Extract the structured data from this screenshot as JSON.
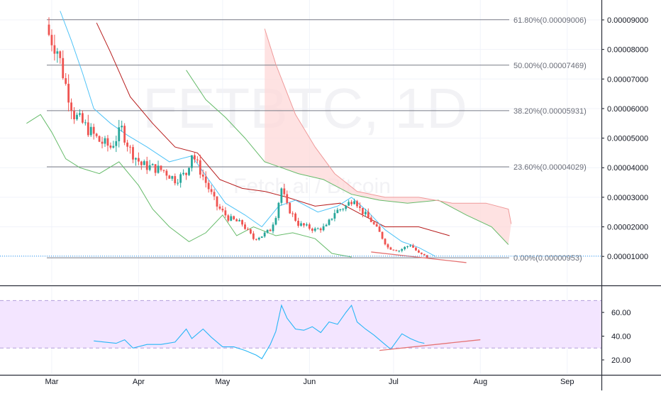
{
  "watermark": {
    "symbol": "FETBTC, 1D",
    "sub": "Fetch.ai / Bitcoin"
  },
  "colors": {
    "up": "#26a69a",
    "down": "#ef5350",
    "fib_line": "#787b86",
    "baseline": "#2196f3",
    "fast_ma": "#4fc3f7",
    "slow_ma": "#b71c1c",
    "span_a": "#66bb6a",
    "span_b": "#ef9a9a",
    "cloud": "#fdd8d8",
    "trend": "#e57373",
    "rsi": "#29b6f6",
    "rsi_band": "#f3e5ff"
  },
  "chart_data": [
    {
      "type": "candlestick",
      "title": "",
      "xlabel": "",
      "ylabel": "",
      "x_ticks": [
        "Mar",
        "Apr",
        "May",
        "Jun",
        "Jul",
        "Aug",
        "Sep"
      ],
      "y_ticks": [
        "0.00009000",
        "0.00008000",
        "0.00007000",
        "0.00006000",
        "0.00005000",
        "0.00004000",
        "0.00003000",
        "0.00002000",
        "0.00001000"
      ],
      "ylim": [
        6.2e-06,
        9e-05
      ],
      "fib_levels": [
        {
          "label": "61.80%(0.00009006)",
          "value": 9.006e-05
        },
        {
          "label": "50.00%(0.00007469)",
          "value": 7.469e-05
        },
        {
          "label": "38.20%(0.00005931)",
          "value": 5.931e-05
        },
        {
          "label": "23.60%(0.00004029)",
          "value": 4.029e-05
        },
        {
          "label": "0.00%(0.00000953)",
          "value": 9.53e-06
        }
      ],
      "current_price": 1.01e-05,
      "close_path": [
        [
          "2019-02-28",
          8.5e-05
        ],
        [
          "2019-03-03",
          8e-05
        ],
        [
          "2019-03-06",
          6.8e-05
        ],
        [
          "2019-03-09",
          5.8e-05
        ],
        [
          "2019-03-12",
          5.5e-05
        ],
        [
          "2019-03-15",
          5.2e-05
        ],
        [
          "2019-03-18",
          4.9e-05
        ],
        [
          "2019-03-22",
          4.7e-05
        ],
        [
          "2019-03-26",
          5.3e-05
        ],
        [
          "2019-03-29",
          4.6e-05
        ],
        [
          "2019-04-02",
          4.1e-05
        ],
        [
          "2019-04-06",
          4e-05
        ],
        [
          "2019-04-10",
          3.9e-05
        ],
        [
          "2019-04-14",
          3.6e-05
        ],
        [
          "2019-04-18",
          3.8e-05
        ],
        [
          "2019-04-20",
          4.5e-05
        ],
        [
          "2019-04-22",
          4.1e-05
        ],
        [
          "2019-04-25",
          3.5e-05
        ],
        [
          "2019-04-29",
          2.7e-05
        ],
        [
          "2019-05-03",
          2.3e-05
        ],
        [
          "2019-05-08",
          2.1e-05
        ],
        [
          "2019-05-12",
          1.6e-05
        ],
        [
          "2019-05-15",
          1.7e-05
        ],
        [
          "2019-05-18",
          1.9e-05
        ],
        [
          "2019-05-20",
          2.4e-05
        ],
        [
          "2019-05-22",
          3.3e-05
        ],
        [
          "2019-05-24",
          2.7e-05
        ],
        [
          "2019-05-28",
          2.1e-05
        ],
        [
          "2019-06-03",
          1.9e-05
        ],
        [
          "2019-06-07",
          2e-05
        ],
        [
          "2019-06-10",
          2.5e-05
        ],
        [
          "2019-06-14",
          2.7e-05
        ],
        [
          "2019-06-17",
          3e-05
        ],
        [
          "2019-06-19",
          2.6e-05
        ],
        [
          "2019-06-23",
          2.2e-05
        ],
        [
          "2019-06-26",
          1.8e-05
        ],
        [
          "2019-06-29",
          1.3e-05
        ],
        [
          "2019-07-03",
          1.2e-05
        ],
        [
          "2019-07-07",
          1.4e-05
        ],
        [
          "2019-07-10",
          1.1e-05
        ],
        [
          "2019-07-13",
          9.8e-06
        ]
      ],
      "fast_ma": [
        [
          "2019-03-04",
          9.3e-05
        ],
        [
          "2019-03-08",
          8.3e-05
        ],
        [
          "2019-03-12",
          7.2e-05
        ],
        [
          "2019-03-16",
          6e-05
        ],
        [
          "2019-03-22",
          5.5e-05
        ],
        [
          "2019-03-28",
          5.1e-05
        ],
        [
          "2019-04-04",
          4.7e-05
        ],
        [
          "2019-04-12",
          4.2e-05
        ],
        [
          "2019-04-20",
          4.4e-05
        ],
        [
          "2019-04-26",
          3.6e-05
        ],
        [
          "2019-05-02",
          2.8e-05
        ],
        [
          "2019-05-09",
          2.4e-05
        ],
        [
          "2019-05-15",
          2e-05
        ],
        [
          "2019-05-21",
          2.7e-05
        ],
        [
          "2019-05-27",
          2.9e-05
        ],
        [
          "2019-06-04",
          2.5e-05
        ],
        [
          "2019-06-11",
          2.7e-05
        ],
        [
          "2019-06-16",
          3e-05
        ],
        [
          "2019-06-22",
          2.5e-05
        ],
        [
          "2019-06-28",
          1.9e-05
        ],
        [
          "2019-07-04",
          1.5e-05
        ],
        [
          "2019-07-10",
          1.3e-05
        ],
        [
          "2019-07-16",
          1e-05
        ]
      ],
      "slow_ma": [
        [
          "2019-03-17",
          8.9e-05
        ],
        [
          "2019-03-22",
          7.9e-05
        ],
        [
          "2019-03-29",
          6.4e-05
        ],
        [
          "2019-04-06",
          5.5e-05
        ],
        [
          "2019-04-14",
          4.7e-05
        ],
        [
          "2019-04-22",
          4.5e-05
        ],
        [
          "2019-04-30",
          3.6e-05
        ],
        [
          "2019-05-08",
          3.3e-05
        ],
        [
          "2019-05-16",
          3.2e-05
        ],
        [
          "2019-05-24",
          3e-05
        ],
        [
          "2019-06-03",
          2.7e-05
        ],
        [
          "2019-06-12",
          2.8e-05
        ],
        [
          "2019-06-20",
          2.4e-05
        ],
        [
          "2019-06-28",
          2e-05
        ],
        [
          "2019-07-10",
          2e-05
        ],
        [
          "2019-07-21",
          1.7e-05
        ]
      ],
      "lagging_span": [
        [
          "2019-02-20",
          5.5e-05
        ],
        [
          "2019-02-25",
          5.8e-05
        ],
        [
          "2019-03-01",
          5.2e-05
        ],
        [
          "2019-03-06",
          4.3e-05
        ],
        [
          "2019-03-11",
          4e-05
        ],
        [
          "2019-03-18",
          3.8e-05
        ],
        [
          "2019-03-25",
          4.2e-05
        ],
        [
          "2019-04-01",
          3.4e-05
        ],
        [
          "2019-04-06",
          2.6e-05
        ],
        [
          "2019-04-12",
          2e-05
        ],
        [
          "2019-04-19",
          1.5e-05
        ],
        [
          "2019-04-25",
          1.8e-05
        ],
        [
          "2019-05-01",
          2.4e-05
        ],
        [
          "2019-05-06",
          1.7e-05
        ],
        [
          "2019-05-12",
          2e-05
        ],
        [
          "2019-05-20",
          1.7e-05
        ],
        [
          "2019-05-26",
          1.8e-05
        ],
        [
          "2019-06-03",
          1.6e-05
        ],
        [
          "2019-06-09",
          1.1e-05
        ],
        [
          "2019-06-16",
          9.8e-06
        ]
      ],
      "span_a": [
        [
          "2019-04-18",
          7.3e-05
        ],
        [
          "2019-04-25",
          6.3e-05
        ],
        [
          "2019-05-02",
          5.7e-05
        ],
        [
          "2019-05-09",
          5e-05
        ],
        [
          "2019-05-16",
          4.2e-05
        ],
        [
          "2019-05-22",
          4e-05
        ],
        [
          "2019-05-28",
          3.8e-05
        ],
        [
          "2019-06-06",
          3.6e-05
        ],
        [
          "2019-06-16",
          3.1e-05
        ],
        [
          "2019-06-26",
          2.9e-05
        ],
        [
          "2019-07-06",
          2.8e-05
        ],
        [
          "2019-07-17",
          2.9e-05
        ],
        [
          "2019-07-27",
          2.4e-05
        ],
        [
          "2019-08-05",
          2e-05
        ],
        [
          "2019-08-11",
          1.4e-05
        ]
      ],
      "span_b": [
        [
          "2019-05-16",
          8.7e-05
        ],
        [
          "2019-05-20",
          7.5e-05
        ],
        [
          "2019-05-27",
          5.8e-05
        ],
        [
          "2019-06-03",
          4.7e-05
        ],
        [
          "2019-06-10",
          3.8e-05
        ],
        [
          "2019-06-18",
          3.2e-05
        ],
        [
          "2019-06-28",
          3e-05
        ],
        [
          "2019-07-10",
          3e-05
        ],
        [
          "2019-07-22",
          2.8e-05
        ],
        [
          "2019-08-03",
          2.8e-05
        ],
        [
          "2019-08-11",
          2.6e-05
        ],
        [
          "2019-08-12",
          2.1e-05
        ]
      ],
      "trendline": [
        [
          "2019-06-23",
          1.15e-05
        ],
        [
          "2019-07-27",
          7.9e-06
        ]
      ]
    },
    {
      "type": "line",
      "title": "",
      "xlabel": "",
      "ylabel": "",
      "ylim": [
        17,
        75
      ],
      "y_ticks": [
        "60.00",
        "40.00",
        "20.00"
      ],
      "band": [
        30,
        70
      ],
      "series": [
        {
          "values": [
            [
              "2019-03-16",
              36
            ],
            [
              "2019-03-20",
              35
            ],
            [
              "2019-03-24",
              34
            ],
            [
              "2019-03-27",
              37
            ],
            [
              "2019-03-30",
              30
            ],
            [
              "2019-04-04",
              33
            ],
            [
              "2019-04-09",
              33
            ],
            [
              "2019-04-14",
              35
            ],
            [
              "2019-04-18",
              46
            ],
            [
              "2019-04-20",
              38
            ],
            [
              "2019-04-24",
              46
            ],
            [
              "2019-04-27",
              39
            ],
            [
              "2019-05-01",
              31
            ],
            [
              "2019-05-05",
              31
            ],
            [
              "2019-05-09",
              28
            ],
            [
              "2019-05-13",
              24
            ],
            [
              "2019-05-15",
              21
            ],
            [
              "2019-05-18",
              33
            ],
            [
              "2019-05-20",
              44
            ],
            [
              "2019-05-22",
              66
            ],
            [
              "2019-05-24",
              55
            ],
            [
              "2019-05-27",
              46
            ],
            [
              "2019-05-30",
              45
            ],
            [
              "2019-06-02",
              48
            ],
            [
              "2019-06-05",
              43
            ],
            [
              "2019-06-08",
              52
            ],
            [
              "2019-06-11",
              50
            ],
            [
              "2019-06-14",
              60
            ],
            [
              "2019-06-16",
              66
            ],
            [
              "2019-06-18",
              52
            ],
            [
              "2019-06-21",
              46
            ],
            [
              "2019-06-24",
              41
            ],
            [
              "2019-06-27",
              35
            ],
            [
              "2019-06-30",
              29
            ],
            [
              "2019-07-04",
              42
            ],
            [
              "2019-07-07",
              38
            ],
            [
              "2019-07-10",
              35
            ],
            [
              "2019-07-12",
              34
            ]
          ]
        }
      ],
      "trendline": [
        [
          "2019-06-26",
          28
        ],
        [
          "2019-08-01",
          37
        ]
      ]
    }
  ]
}
